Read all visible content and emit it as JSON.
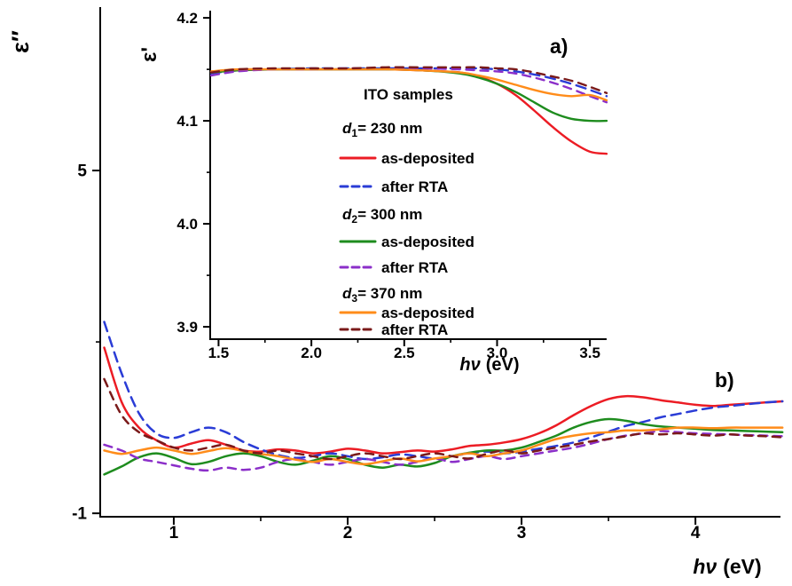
{
  "figure": {
    "description": "Dielectric function spectra of ITO samples: inset (a) real part, main (b) imaginary part"
  },
  "chart_data": [
    {
      "id": "inset",
      "type": "line",
      "panel_label": "a)",
      "panel_label_color": "#20a020",
      "ylabel": "ε'",
      "xlabel_italic": "hν",
      "xlabel_rest": "(eV)",
      "xlim": [
        1.455,
        3.59
      ],
      "ylim": [
        3.888,
        4.207
      ],
      "xticks": {
        "major": [
          1.5,
          2.0,
          2.5,
          3.0,
          3.5
        ],
        "labels": [
          "1.5",
          "2.0",
          "2.5",
          "3.0",
          "3.5"
        ],
        "minor": [
          1.75,
          2.25,
          2.75,
          3.25
        ]
      },
      "yticks": {
        "major": [
          3.9,
          4.0,
          4.1,
          4.2
        ],
        "labels": [
          "3.9",
          "4.0",
          "4.1",
          "4.2"
        ],
        "minor": [
          3.95,
          4.05,
          4.15
        ]
      },
      "x": [
        1.46,
        1.6,
        1.8,
        2.0,
        2.2,
        2.4,
        2.6,
        2.8,
        2.9,
        3.0,
        3.1,
        3.2,
        3.3,
        3.4,
        3.5,
        3.59
      ],
      "series": [
        {
          "name": "d1 230nm as-deposited",
          "color": "#ec1c24",
          "dash": "",
          "y": [
            4.148,
            4.149,
            4.15,
            4.15,
            4.15,
            4.15,
            4.149,
            4.147,
            4.143,
            4.136,
            4.125,
            4.11,
            4.094,
            4.08,
            4.07,
            4.068
          ]
        },
        {
          "name": "d1 230nm after RTA",
          "color": "#2a3cd6",
          "dash": "11 7",
          "y": [
            4.146,
            4.149,
            4.15,
            4.151,
            4.151,
            4.151,
            4.151,
            4.151,
            4.151,
            4.15,
            4.148,
            4.145,
            4.141,
            4.136,
            4.13,
            4.124
          ]
        },
        {
          "name": "d2 300nm as-deposited",
          "color": "#1e8c1e",
          "dash": "",
          "y": [
            4.147,
            4.149,
            4.15,
            4.15,
            4.15,
            4.15,
            4.149,
            4.146,
            4.142,
            4.136,
            4.128,
            4.118,
            4.108,
            4.102,
            4.1,
            4.1
          ]
        },
        {
          "name": "d2 300nm after RTA",
          "color": "#8b2fc9",
          "dash": "9 7",
          "y": [
            4.144,
            4.148,
            4.15,
            4.15,
            4.151,
            4.151,
            4.151,
            4.15,
            4.149,
            4.148,
            4.146,
            4.142,
            4.137,
            4.131,
            4.124,
            4.118
          ]
        },
        {
          "name": "d3 370nm as-deposited",
          "color": "#ff8c1a",
          "dash": "",
          "y": [
            4.148,
            4.15,
            4.15,
            4.15,
            4.15,
            4.15,
            4.149,
            4.147,
            4.144,
            4.14,
            4.135,
            4.13,
            4.126,
            4.124,
            4.125,
            4.12
          ]
        },
        {
          "name": "d3 370nm after RTA",
          "color": "#7a1a1a",
          "dash": "9 7",
          "y": [
            4.147,
            4.15,
            4.151,
            4.151,
            4.151,
            4.152,
            4.152,
            4.152,
            4.152,
            4.151,
            4.15,
            4.147,
            4.143,
            4.139,
            4.133,
            4.127
          ]
        }
      ],
      "legend": [
        {
          "kind": "title",
          "text": "ITO samples"
        },
        {
          "kind": "group",
          "pre": "d",
          "sub": "1",
          "post": "= 230 nm"
        },
        {
          "kind": "series",
          "text": "as-deposited",
          "color": "#ec1c24",
          "dash": ""
        },
        {
          "kind": "series",
          "text": "after RTA",
          "color": "#2a3cd6",
          "dash": "8 5"
        },
        {
          "kind": "group",
          "pre": "d",
          "sub": "2",
          "post": "= 300 nm"
        },
        {
          "kind": "series",
          "text": "as-deposited",
          "color": "#1e8c1e",
          "dash": ""
        },
        {
          "kind": "series",
          "text": "after RTA",
          "color": "#8b2fc9",
          "dash": "8 5"
        },
        {
          "kind": "group",
          "pre": "d",
          "sub": "3",
          "post": "= 370 nm"
        },
        {
          "kind": "series",
          "text": "as-deposited",
          "color": "#ff8c1a",
          "dash": ""
        },
        {
          "kind": "series",
          "text": "after RTA",
          "color": "#7a1a1a",
          "dash": "8 5"
        }
      ]
    },
    {
      "id": "main",
      "type": "line",
      "panel_label": "b)",
      "panel_label_color": "#20a020",
      "ylabel": "ε″",
      "xlabel_italic": "hν",
      "xlabel_rest": "(eV)",
      "xlim": [
        0.577,
        4.489
      ],
      "ylim": [
        -1.06,
        7.86
      ],
      "xticks": {
        "major": [
          1,
          2,
          3,
          4
        ],
        "labels": [
          "1",
          "2",
          "3",
          "4"
        ],
        "minor": [
          1.5,
          2.5,
          3.5
        ]
      },
      "yticks": {
        "major": [
          -1,
          5
        ],
        "labels": [
          "-1",
          "5"
        ],
        "minor": [
          2
        ]
      },
      "x": [
        0.6,
        0.7,
        0.8,
        0.9,
        1.0,
        1.1,
        1.2,
        1.3,
        1.4,
        1.5,
        1.6,
        1.7,
        1.8,
        1.9,
        2.0,
        2.1,
        2.2,
        2.3,
        2.4,
        2.5,
        2.6,
        2.7,
        2.8,
        2.9,
        3.0,
        3.1,
        3.2,
        3.3,
        3.4,
        3.5,
        3.6,
        3.7,
        3.8,
        3.9,
        4.0,
        4.1,
        4.2,
        4.3,
        4.4,
        4.5
      ],
      "series": [
        {
          "name": "d1 230nm as-deposited",
          "color": "#ec1c24",
          "dash": "",
          "y": [
            1.9,
            0.95,
            0.5,
            0.28,
            0.15,
            0.22,
            0.28,
            0.2,
            0.1,
            0.08,
            0.12,
            0.1,
            0.05,
            0.08,
            0.13,
            0.1,
            0.05,
            0.07,
            0.1,
            0.08,
            0.12,
            0.18,
            0.2,
            0.24,
            0.3,
            0.4,
            0.54,
            0.72,
            0.88,
            1.0,
            1.05,
            1.03,
            0.98,
            0.94,
            0.9,
            0.88,
            0.9,
            0.92,
            0.94,
            0.96
          ]
        },
        {
          "name": "d1 230nm after RTA",
          "color": "#2a3cd6",
          "dash": "11 7",
          "y": [
            2.35,
            1.45,
            0.75,
            0.4,
            0.32,
            0.42,
            0.5,
            0.42,
            0.25,
            0.12,
            0.02,
            -0.03,
            0.0,
            0.05,
            0.0,
            -0.05,
            -0.02,
            0.03,
            0.0,
            -0.04,
            0.0,
            0.05,
            0.08,
            0.05,
            0.08,
            0.13,
            0.18,
            0.24,
            0.33,
            0.43,
            0.53,
            0.6,
            0.68,
            0.74,
            0.8,
            0.85,
            0.88,
            0.91,
            0.94,
            0.96
          ]
        },
        {
          "name": "d2 300nm as-deposited",
          "color": "#1e8c1e",
          "dash": "",
          "y": [
            -0.32,
            -0.18,
            -0.02,
            0.05,
            -0.03,
            -0.14,
            -0.1,
            0.0,
            0.05,
            0.0,
            -0.1,
            -0.15,
            -0.08,
            0.0,
            -0.05,
            -0.15,
            -0.2,
            -0.15,
            -0.18,
            -0.12,
            0.0,
            0.06,
            0.1,
            0.1,
            0.15,
            0.25,
            0.36,
            0.5,
            0.6,
            0.65,
            0.62,
            0.56,
            0.52,
            0.5,
            0.48,
            0.46,
            0.45,
            0.44,
            0.43,
            0.42
          ]
        },
        {
          "name": "d2 300nm after RTA",
          "color": "#8b2fc9",
          "dash": "9 7",
          "y": [
            0.2,
            0.1,
            -0.04,
            -0.1,
            -0.16,
            -0.22,
            -0.25,
            -0.2,
            -0.24,
            -0.2,
            -0.1,
            -0.05,
            -0.1,
            -0.15,
            -0.1,
            -0.05,
            -0.1,
            -0.15,
            -0.1,
            -0.04,
            -0.1,
            -0.05,
            0.0,
            -0.05,
            0.0,
            0.05,
            0.1,
            0.15,
            0.22,
            0.3,
            0.36,
            0.4,
            0.44,
            0.42,
            0.4,
            0.39,
            0.38,
            0.37,
            0.36,
            0.35
          ]
        },
        {
          "name": "d3 370nm as-deposited",
          "color": "#ff8c1a",
          "dash": "",
          "y": [
            0.1,
            0.04,
            0.1,
            0.15,
            0.1,
            0.04,
            0.09,
            0.14,
            0.09,
            0.04,
            0.0,
            -0.06,
            -0.1,
            -0.05,
            -0.1,
            -0.14,
            -0.09,
            -0.04,
            -0.09,
            -0.04,
            0.0,
            0.05,
            0.0,
            0.05,
            0.1,
            0.2,
            0.3,
            0.36,
            0.4,
            0.42,
            0.45,
            0.45,
            0.47,
            0.5,
            0.5,
            0.49,
            0.5,
            0.5,
            0.5,
            0.5
          ]
        },
        {
          "name": "d3 370nm after RTA",
          "color": "#7a1a1a",
          "dash": "9 7",
          "y": [
            1.35,
            0.72,
            0.42,
            0.28,
            0.15,
            0.1,
            0.15,
            0.2,
            0.1,
            0.05,
            0.1,
            0.05,
            0.0,
            -0.05,
            0.0,
            0.05,
            0.0,
            -0.05,
            0.0,
            0.05,
            0.0,
            -0.04,
            0.04,
            0.1,
            0.05,
            0.1,
            0.15,
            0.2,
            0.26,
            0.3,
            0.35,
            0.4,
            0.38,
            0.4,
            0.38,
            0.36,
            0.38,
            0.36,
            0.35,
            0.33
          ]
        }
      ]
    }
  ]
}
